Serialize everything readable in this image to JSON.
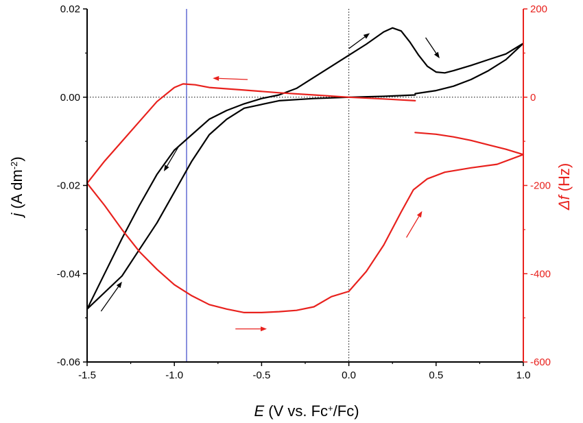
{
  "chart_data": {
    "type": "line",
    "title": "",
    "xlabel": {
      "var": "E",
      "rest": " (V vs. Fc",
      "sup": "+",
      "tail": "/Fc)"
    },
    "ylabel_left": {
      "var": "j",
      "rest": " (A dm",
      "sup": "-2",
      "tail": ")"
    },
    "ylabel_right": {
      "var": "Δf",
      "rest": " (Hz)"
    },
    "xlim": [
      -1.5,
      1.0
    ],
    "ylim_left": [
      -0.06,
      0.02
    ],
    "ylim_right": [
      -600,
      200
    ],
    "x_ticks": [
      -1.5,
      -1.0,
      -0.5,
      0.0,
      0.5,
      1.0
    ],
    "x_tick_labels": [
      "-1.5",
      "-1.0",
      "-0.5",
      "0.0",
      "0.5",
      "1.0"
    ],
    "y_left_ticks": [
      -0.06,
      -0.04,
      -0.02,
      0.0,
      0.02
    ],
    "y_left_tick_labels": [
      "-0.06",
      "-0.04",
      "-0.02",
      "0.00",
      "0.02"
    ],
    "y_right_ticks": [
      -600,
      -400,
      -200,
      0,
      200
    ],
    "y_right_tick_labels": [
      "-600",
      "-400",
      "-200",
      "0",
      "200"
    ],
    "reference_lines": {
      "x_zero": 0.0,
      "y_zero_left": 0.0,
      "vertical_marker_x": -0.93
    },
    "colors": {
      "current": "#000000",
      "frequency": "#e8211d",
      "marker_line": "#3a46c8",
      "axes": "#000000",
      "right_axis": "#e8211d"
    },
    "series": [
      {
        "axis": "left",
        "color": "#000000",
        "points": [
          [
            0.38,
            0.0005
          ],
          [
            0.2,
            0.0002
          ],
          [
            0.0,
            0.0
          ],
          [
            -0.2,
            -0.0003
          ],
          [
            -0.4,
            -0.0008
          ],
          [
            -0.6,
            -0.0025
          ],
          [
            -0.7,
            -0.005
          ],
          [
            -0.8,
            -0.0085
          ],
          [
            -0.9,
            -0.0145
          ],
          [
            -1.0,
            -0.0215
          ],
          [
            -1.1,
            -0.0285
          ],
          [
            -1.2,
            -0.0345
          ],
          [
            -1.3,
            -0.0405
          ],
          [
            -1.5,
            -0.048
          ],
          [
            -1.4,
            -0.04
          ],
          [
            -1.3,
            -0.032
          ],
          [
            -1.2,
            -0.0245
          ],
          [
            -1.1,
            -0.0175
          ],
          [
            -1.0,
            -0.012
          ],
          [
            -0.9,
            -0.0085
          ],
          [
            -0.8,
            -0.005
          ],
          [
            -0.7,
            -0.003
          ],
          [
            -0.6,
            -0.0015
          ],
          [
            -0.5,
            -0.0003
          ],
          [
            -0.4,
            0.0005
          ],
          [
            -0.3,
            0.002
          ],
          [
            -0.2,
            0.0045
          ],
          [
            -0.1,
            0.007
          ],
          [
            0.0,
            0.0095
          ],
          [
            0.1,
            0.012
          ],
          [
            0.2,
            0.0148
          ],
          [
            0.25,
            0.0157
          ],
          [
            0.3,
            0.015
          ],
          [
            0.35,
            0.0125
          ],
          [
            0.4,
            0.0095
          ],
          [
            0.45,
            0.007
          ],
          [
            0.5,
            0.0057
          ],
          [
            0.55,
            0.0055
          ],
          [
            0.6,
            0.006
          ],
          [
            0.7,
            0.0072
          ],
          [
            0.8,
            0.0085
          ],
          [
            0.9,
            0.0098
          ],
          [
            1.0,
            0.0122
          ],
          [
            0.9,
            0.0085
          ],
          [
            0.8,
            0.006
          ],
          [
            0.7,
            0.004
          ],
          [
            0.6,
            0.0025
          ],
          [
            0.5,
            0.0015
          ],
          [
            0.38,
            0.0008
          ]
        ]
      },
      {
        "axis": "right",
        "color": "#e8211d",
        "points": [
          [
            0.38,
            -8
          ],
          [
            0.2,
            -4
          ],
          [
            0.0,
            0
          ],
          [
            -0.2,
            5
          ],
          [
            -0.4,
            10
          ],
          [
            -0.6,
            16
          ],
          [
            -0.8,
            22
          ],
          [
            -0.88,
            28
          ],
          [
            -0.95,
            30
          ],
          [
            -1.0,
            22
          ],
          [
            -1.1,
            -10
          ],
          [
            -1.2,
            -55
          ],
          [
            -1.3,
            -100
          ],
          [
            -1.4,
            -145
          ],
          [
            -1.5,
            -195
          ],
          [
            -1.4,
            -245
          ],
          [
            -1.3,
            -300
          ],
          [
            -1.2,
            -350
          ],
          [
            -1.1,
            -390
          ],
          [
            -1.0,
            -425
          ],
          [
            -0.9,
            -450
          ],
          [
            -0.8,
            -470
          ],
          [
            -0.7,
            -480
          ],
          [
            -0.6,
            -488
          ],
          [
            -0.5,
            -488
          ],
          [
            -0.4,
            -486
          ],
          [
            -0.3,
            -483
          ],
          [
            -0.2,
            -475
          ],
          [
            -0.1,
            -452
          ],
          [
            0.0,
            -440
          ],
          [
            0.1,
            -395
          ],
          [
            0.2,
            -335
          ],
          [
            0.3,
            -260
          ],
          [
            0.37,
            -210
          ],
          [
            0.45,
            -185
          ],
          [
            0.55,
            -170
          ],
          [
            0.7,
            -160
          ],
          [
            0.85,
            -152
          ],
          [
            1.0,
            -130
          ],
          [
            0.9,
            -118
          ],
          [
            0.8,
            -108
          ],
          [
            0.7,
            -98
          ],
          [
            0.6,
            -90
          ],
          [
            0.5,
            -84
          ],
          [
            0.38,
            -80
          ]
        ]
      }
    ],
    "arrows": [
      {
        "axis": "left",
        "color": "#000000",
        "from": [
          0.0,
          0.011
        ],
        "to": [
          0.12,
          0.0145
        ]
      },
      {
        "axis": "left",
        "color": "#000000",
        "from": [
          0.44,
          0.0135
        ],
        "to": [
          0.52,
          0.0088
        ]
      },
      {
        "axis": "left",
        "color": "#000000",
        "from": [
          -0.97,
          -0.0108
        ],
        "to": [
          -1.06,
          -0.0168
        ]
      },
      {
        "axis": "left",
        "color": "#000000",
        "from": [
          -1.42,
          -0.0485
        ],
        "to": [
          -1.3,
          -0.0418
        ]
      },
      {
        "axis": "right",
        "color": "#e8211d",
        "from": [
          -0.58,
          40
        ],
        "to": [
          -0.78,
          43
        ]
      },
      {
        "axis": "right",
        "color": "#e8211d",
        "from": [
          -0.65,
          -525
        ],
        "to": [
          -0.47,
          -525
        ]
      },
      {
        "axis": "right",
        "color": "#e8211d",
        "from": [
          0.33,
          -318
        ],
        "to": [
          0.42,
          -258
        ]
      }
    ]
  }
}
